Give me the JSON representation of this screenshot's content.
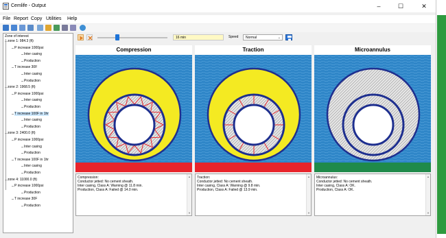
{
  "window": {
    "title": "Cemlife - Output",
    "controls": {
      "minimize": "–",
      "maximize": "☐",
      "close": "✕"
    }
  },
  "menu": [
    "File",
    "Report",
    "Copy",
    "Utilities",
    "Help"
  ],
  "toolbar": {
    "icons": [
      "open-icon",
      "save-icon",
      "copy-icon",
      "print-icon",
      "chart-icon",
      "grid-icon",
      "table-icon",
      "settings-icon",
      "export-icon",
      "help-icon"
    ]
  },
  "tree": {
    "root": "Zone of interest",
    "nodes": [
      {
        "label": "zone 1: 984.3 (ft)",
        "level": 1
      },
      {
        "label": "P increase 1000psi",
        "level": 2
      },
      {
        "label": "Inter casing",
        "level": 3
      },
      {
        "label": "Production",
        "level": 3
      },
      {
        "label": "T increase 30F",
        "level": 2
      },
      {
        "label": "Inter casing",
        "level": 3
      },
      {
        "label": "Production",
        "level": 3
      },
      {
        "label": "zone 2: 1968.5 (ft)",
        "level": 1
      },
      {
        "label": "P increase 1000psi",
        "level": 2
      },
      {
        "label": "Inter casing",
        "level": 3
      },
      {
        "label": "Production",
        "level": 3
      },
      {
        "label": "T increase 100F in 1hr",
        "level": 2,
        "selected": true
      },
      {
        "label": "Inter casing",
        "level": 3
      },
      {
        "label": "Production",
        "level": 3
      },
      {
        "label": "zone 3: 2400.0 (ft)",
        "level": 1
      },
      {
        "label": "P increase 1000psi",
        "level": 2
      },
      {
        "label": "Inter casing",
        "level": 3
      },
      {
        "label": "Production",
        "level": 3
      },
      {
        "label": "T increase 100F in 1hr",
        "level": 2
      },
      {
        "label": "Inter casing",
        "level": 3
      },
      {
        "label": "Production",
        "level": 3
      },
      {
        "label": "zone 4: 11000.0 (ft)",
        "level": 1
      },
      {
        "label": "P increase 1000psi",
        "level": 2
      },
      {
        "label": "Production",
        "level": 3
      },
      {
        "label": "T increase 30F",
        "level": 2
      },
      {
        "label": "Production",
        "level": 3
      }
    ]
  },
  "controls": {
    "time_value": "16 min",
    "speed_label": "Speed",
    "speed_value": "Normal",
    "slider_fraction": 0.28
  },
  "panels": [
    {
      "title": "Compression",
      "mode": "compression",
      "strip_color": "#e8242b",
      "notes": [
        "Compression:",
        "Conductor jetted: No cement sheath.",
        "Inter casing, Class A: Warning @ 11.8 min.",
        "Production, Class A: Failed @ 14.0 min."
      ]
    },
    {
      "title": "Traction",
      "mode": "traction",
      "strip_color": "#e8242b",
      "notes": [
        "Traction:",
        "Conductor jetted: No cement sheath.",
        "Inter casing, Class A: Warning @ 9.8 min.",
        "Production, Class A: Failed @ 13.9 min."
      ]
    },
    {
      "title": "Microannulus",
      "mode": "microannulus",
      "strip_color": "#1f8a4a",
      "notes": [
        "Microannulus:",
        "Conductor jetted: No cement sheath.",
        "Inter casing, Class A: OK.",
        "Production, Class A: OK."
      ]
    }
  ],
  "colors": {
    "water": "#2f86c8",
    "cement_outer": "#f4ea22",
    "casing": "#1e2f8f",
    "hatch": "#c7c7c7",
    "crack": "#e8242b"
  }
}
